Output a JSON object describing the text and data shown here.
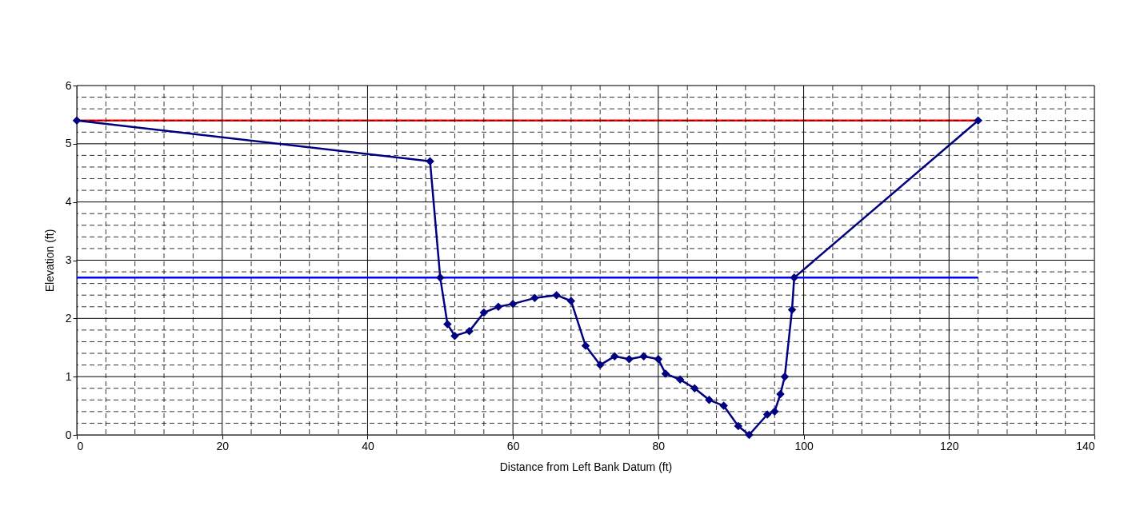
{
  "chart_data": {
    "type": "line",
    "xlabel": "Distance from Left Bank Datum (ft)",
    "ylabel": "Elevation (ft)",
    "xlim": [
      0,
      140
    ],
    "ylim": [
      0,
      6
    ],
    "grid": true,
    "line_style": "solid",
    "xticks": [
      0,
      {
        "value": 4,
        "label": null
      },
      {
        "value": 8,
        "label": null
      },
      {
        "value": 12,
        "label": null
      },
      {
        "value": 16,
        "label": null
      },
      20,
      {
        "value": 24,
        "label": null
      },
      {
        "value": 28,
        "label": null
      },
      {
        "value": 32,
        "label": null
      },
      {
        "value": 36,
        "label": null
      },
      40,
      {
        "value": 44,
        "label": null
      },
      {
        "value": 48,
        "label": null
      },
      {
        "value": 52,
        "label": null
      },
      {
        "value": 56,
        "label": null
      },
      60,
      {
        "value": 64,
        "label": null
      },
      {
        "value": 68,
        "label": null
      },
      {
        "value": 72,
        "label": null
      },
      {
        "value": 76,
        "label": null
      },
      80,
      {
        "value": 84,
        "label": null
      },
      {
        "value": 88,
        "label": null
      },
      {
        "value": 92,
        "label": null
      },
      {
        "value": 96,
        "label": null
      },
      100,
      {
        "value": 104,
        "label": null
      },
      {
        "value": 108,
        "label": null
      },
      {
        "value": 112,
        "label": null
      },
      {
        "value": 116,
        "label": null
      },
      120,
      {
        "value": 124,
        "label": null
      },
      {
        "value": 128,
        "label": null
      },
      {
        "value": 132,
        "label": null
      },
      {
        "value": 136,
        "label": null
      },
      140
    ],
    "yticks": [
      0,
      {
        "value": 0.2,
        "label": null
      },
      {
        "value": 0.4,
        "label": null
      },
      {
        "value": 0.6,
        "label": null
      },
      {
        "value": 0.8,
        "label": null
      },
      1,
      {
        "value": 1.2,
        "label": null
      },
      {
        "value": 1.4,
        "label": null
      },
      {
        "value": 1.6,
        "label": null
      },
      {
        "value": 1.8,
        "label": null
      },
      2,
      {
        "value": 2.2,
        "label": null
      },
      {
        "value": 2.4,
        "label": null
      },
      {
        "value": 2.6,
        "label": null
      },
      {
        "value": 2.8,
        "label": null
      },
      3,
      {
        "value": 3.2,
        "label": null
      },
      {
        "value": 3.4,
        "label": null
      },
      {
        "value": 3.6,
        "label": null
      },
      {
        "value": 3.8,
        "label": null
      },
      4,
      {
        "value": 4.2,
        "label": null
      },
      {
        "value": 4.4,
        "label": null
      },
      {
        "value": 4.6,
        "label": null
      },
      {
        "value": 4.8,
        "label": null
      },
      5,
      {
        "value": 5.2,
        "label": null
      },
      {
        "value": 5.4,
        "label": null
      },
      {
        "value": 5.6,
        "label": null
      },
      {
        "value": 5.8,
        "label": null
      },
      6
    ],
    "series": [
      {
        "type": "line",
        "marker": "none",
        "color": "#ff0000",
        "x": [
          0,
          124
        ],
        "values": [
          5.4,
          5.4
        ]
      },
      {
        "type": "line",
        "marker": "none",
        "color": "#0000ff",
        "x": [
          0,
          124
        ],
        "values": [
          2.7,
          2.7
        ]
      },
      {
        "type": "line",
        "marker": "diamond",
        "color": "#000080",
        "x": [
          0,
          48.6,
          50,
          51,
          52,
          54,
          56,
          58,
          60,
          63,
          66,
          68,
          70,
          72,
          74,
          76,
          78,
          80,
          81,
          83,
          85,
          87,
          89,
          91,
          92.5,
          95,
          96,
          96.8,
          97.4,
          98.4,
          98.7,
          124
        ],
        "values": [
          5.4,
          4.7,
          2.7,
          1.9,
          1.7,
          1.78,
          2.1,
          2.2,
          2.25,
          2.35,
          2.4,
          2.3,
          1.53,
          1.2,
          1.35,
          1.3,
          1.35,
          1.3,
          1.05,
          0.95,
          0.8,
          0.6,
          0.5,
          0.15,
          0.0,
          0.35,
          0.4,
          0.7,
          1.0,
          2.15,
          2.7,
          5.4
        ]
      }
    ]
  }
}
